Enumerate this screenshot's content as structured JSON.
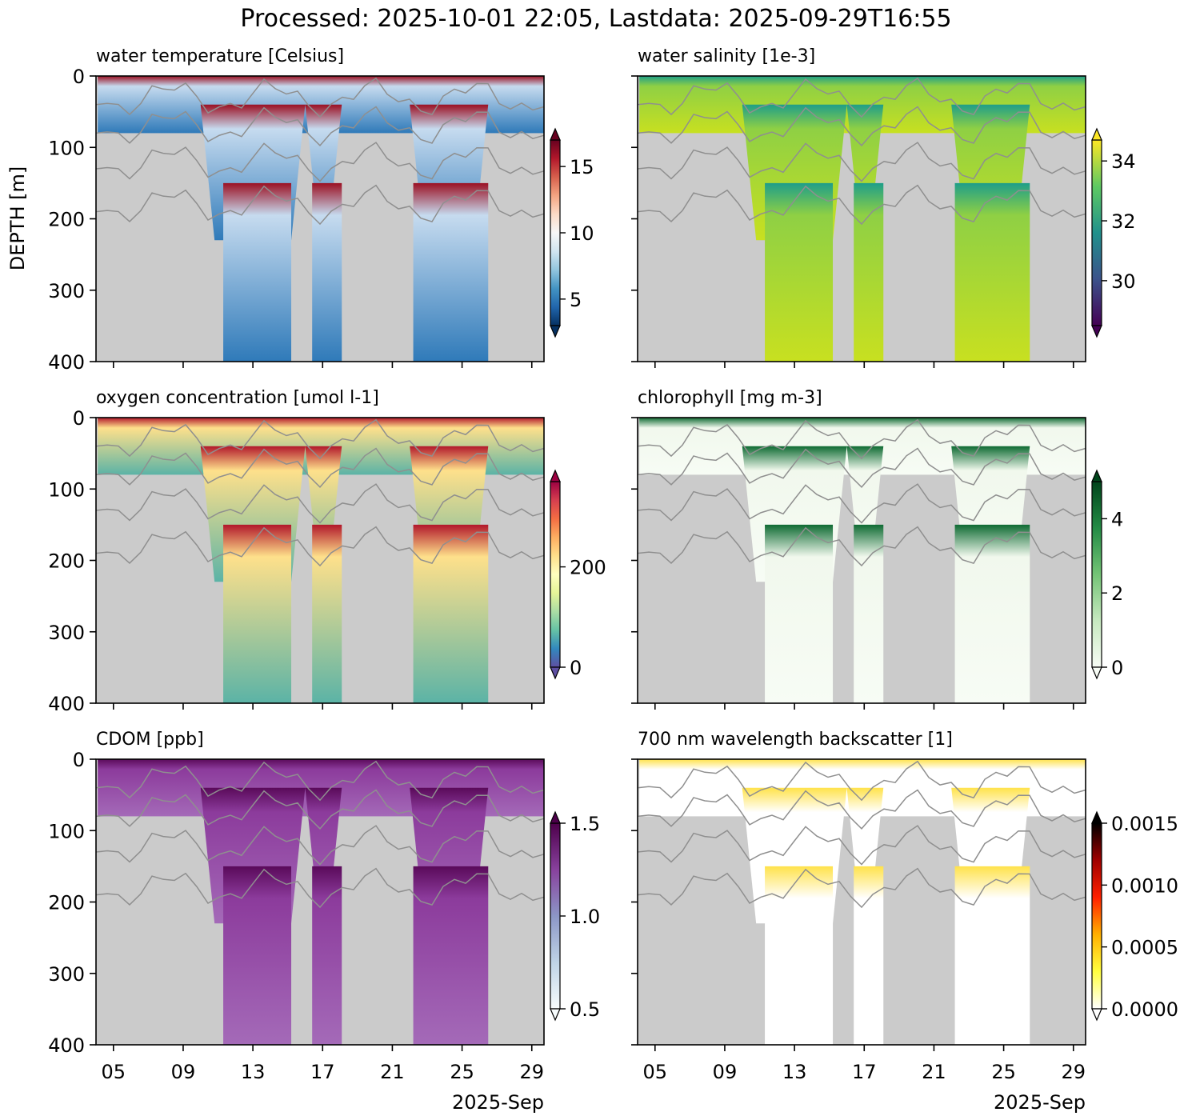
{
  "figure_title": "Processed: 2025-10-01 22:05, Lastdata: 2025-09-29T16:55",
  "ylabel": "DEPTH [m]",
  "y_ticks": [
    "0",
    "100",
    "200",
    "300",
    "400"
  ],
  "x_ticks": [
    "05",
    "09",
    "13",
    "17",
    "21",
    "25",
    "29"
  ],
  "x_sublabel": "2025-Sep",
  "chart_data": [
    {
      "type": "heatmap",
      "title": "water temperature [Celsius]",
      "variable": "temperature",
      "colormap": "RdBu_r",
      "cbar_range": [
        3,
        17
      ],
      "cbar_ticks": [
        {
          "value": 5,
          "label": "5"
        },
        {
          "value": 10,
          "label": "10"
        },
        {
          "value": 15,
          "label": "15"
        }
      ],
      "profile": {
        "surface": "#9b1023",
        "mid": "#c6dbef",
        "deep": "#2f7ab9"
      },
      "ylim": [
        400,
        0
      ],
      "xlim": [
        "2025-09-04",
        "2025-09-29"
      ]
    },
    {
      "type": "heatmap",
      "title": "water salinity [1e-3]",
      "variable": "salinity",
      "colormap": "viridis",
      "cbar_range": [
        28.5,
        34.7
      ],
      "cbar_ticks": [
        {
          "value": 30,
          "label": "30"
        },
        {
          "value": 32,
          "label": "32"
        },
        {
          "value": 34,
          "label": "34"
        }
      ],
      "profile": {
        "surface": "#1f9e89",
        "mid": "#8fd044",
        "deep": "#c8e020"
      },
      "ylim": [
        400,
        0
      ],
      "xlim": [
        "2025-09-04",
        "2025-09-29"
      ]
    },
    {
      "type": "heatmap",
      "title": "oxygen concentration [umol l-1]",
      "variable": "oxygen",
      "colormap": "Spectral_r",
      "cbar_range": [
        0,
        370
      ],
      "cbar_ticks": [
        {
          "value": 0,
          "label": "0"
        },
        {
          "value": 200,
          "label": "200"
        }
      ],
      "profile": {
        "surface": "#b2182b",
        "mid": "#fee08b",
        "deep": "#5bb3a6"
      },
      "ylim": [
        400,
        0
      ],
      "xlim": [
        "2025-09-04",
        "2025-09-29"
      ]
    },
    {
      "type": "heatmap",
      "title": "chlorophyll [mg m-3]",
      "variable": "chlorophyll",
      "colormap": "Greens",
      "cbar_range": [
        0,
        5
      ],
      "cbar_ticks": [
        {
          "value": 0,
          "label": "0"
        },
        {
          "value": 2,
          "label": "2"
        },
        {
          "value": 4,
          "label": "4"
        }
      ],
      "profile": {
        "surface": "#0f6b33",
        "mid": "#f1f8ed",
        "deep": "#f7fcf5"
      },
      "ylim": [
        400,
        0
      ],
      "xlim": [
        "2025-09-04",
        "2025-09-29"
      ]
    },
    {
      "type": "heatmap",
      "title": "CDOM [ppb]",
      "variable": "cdom",
      "colormap": "BuPu",
      "cbar_range": [
        0.5,
        1.5
      ],
      "cbar_ticks": [
        {
          "value": 0.5,
          "label": "0.5"
        },
        {
          "value": 1.0,
          "label": "1.0"
        },
        {
          "value": 1.5,
          "label": "1.5"
        }
      ],
      "profile": {
        "surface": "#5a0a5a",
        "mid": "#8c3b9c",
        "deep": "#a46ab8"
      },
      "ylim": [
        400,
        0
      ],
      "xlim": [
        "2025-09-04",
        "2025-09-29"
      ]
    },
    {
      "type": "heatmap",
      "title": "700 nm wavelength backscatter [1]",
      "variable": "backscatter",
      "colormap": "hot_r",
      "cbar_range": [
        0,
        0.0015
      ],
      "cbar_ticks": [
        {
          "value": 0,
          "label": "0.0000"
        },
        {
          "value": 0.0005,
          "label": "0.0005"
        },
        {
          "value": 0.001,
          "label": "0.0010"
        },
        {
          "value": 0.0015,
          "label": "0.0015"
        }
      ],
      "profile": {
        "surface": "#ffe24a",
        "mid": "#ffffff",
        "deep": "#ffffff"
      },
      "ylim": [
        400,
        0
      ],
      "xlim": [
        "2025-09-04",
        "2025-09-29"
      ]
    }
  ]
}
